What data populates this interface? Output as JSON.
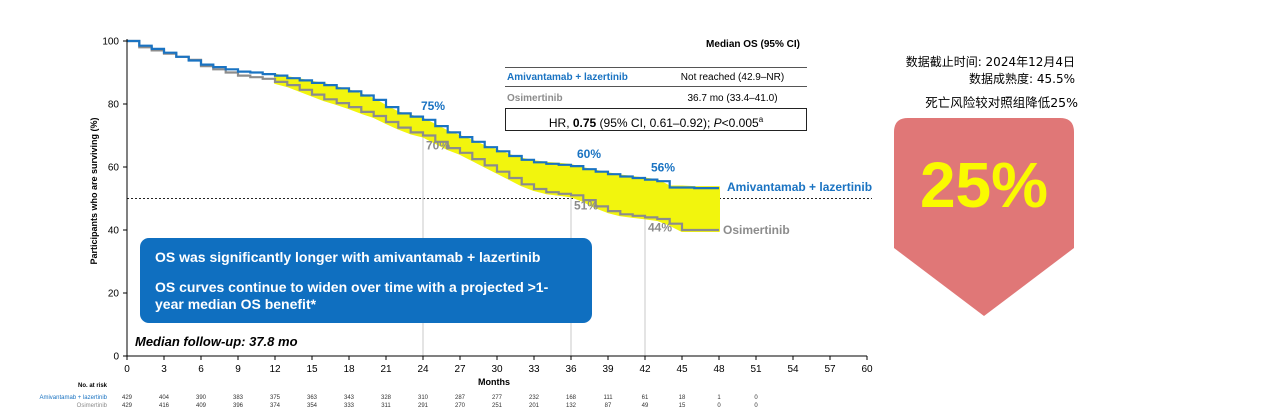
{
  "cutoff": {
    "date_label": "数据截止时间: 2024年12月4日",
    "maturity_label": "数据成熟度: 45.5%"
  },
  "reduction": {
    "text": "死亡风险较对照组降低25%",
    "value": "25%",
    "arrow_color": "#e07777"
  },
  "os_box": {
    "line1": "OS was significantly longer with amivantamab + lazertinib",
    "line2": "OS curves continue to widen over time with a projected >1-year median OS benefit*"
  },
  "follow_up": "Median follow-up: 37.8 mo",
  "chart_data": {
    "type": "line",
    "ylabel": "Participants who are surviving (%)",
    "xlabel": "Months",
    "xlim": [
      0,
      60
    ],
    "ylim": [
      0,
      100
    ],
    "x_ticks": [
      0,
      3,
      6,
      9,
      12,
      15,
      18,
      21,
      24,
      27,
      30,
      33,
      36,
      39,
      42,
      45,
      48,
      51,
      54,
      57,
      60
    ],
    "y_ticks": [
      0,
      20,
      40,
      60,
      80,
      100
    ],
    "reference_line_y": 50,
    "legend_header": "Median OS (95% CI)",
    "hr_text": "HR, 0.75 (95% CI, 0.61–0.92); P<0.005a",
    "series": [
      {
        "name": "Amivantamab + lazertinib",
        "color": "#1a73c2",
        "median": "Not reached (42.9–NR)",
        "end_label": "Amivantamab + lazertinib",
        "x": [
          0,
          1,
          2,
          3,
          4,
          5,
          6,
          7,
          8,
          9,
          10,
          11,
          12,
          13,
          14,
          15,
          16,
          17,
          18,
          19,
          20,
          21,
          22,
          23,
          24,
          25,
          26,
          27,
          28,
          29,
          30,
          31,
          32,
          33,
          34,
          35,
          36,
          37,
          38,
          39,
          40,
          41,
          42,
          43,
          44,
          45,
          46,
          47,
          48
        ],
        "y": [
          100,
          98.5,
          97.5,
          96.3,
          95,
          93.8,
          92.5,
          91.7,
          91,
          90.3,
          90,
          89.5,
          89,
          88.2,
          87.5,
          86.7,
          86,
          85,
          84,
          82.7,
          81.3,
          79,
          77,
          76,
          75,
          73,
          71,
          69.5,
          68,
          66.3,
          65,
          63.5,
          62.3,
          61.5,
          61,
          60.7,
          60.3,
          59.3,
          58.5,
          57.7,
          57,
          56.5,
          56,
          55.5,
          53.5,
          53.5,
          53.3,
          53.3,
          53.3
        ],
        "annotations": [
          {
            "x": 24,
            "label": "75%"
          },
          {
            "x": 36,
            "label": "60%"
          },
          {
            "x": 42,
            "label": "56%"
          }
        ],
        "at_risk": [
          429,
          404,
          390,
          383,
          375,
          363,
          343,
          328,
          310,
          287,
          277,
          232,
          168,
          111,
          61,
          18,
          1,
          0
        ]
      },
      {
        "name": "Osimertinib",
        "color": "#8c8c8c",
        "median": "36.7 mo (33.4–41.0)",
        "end_label": "Osimertinib",
        "x": [
          0,
          1,
          2,
          3,
          4,
          5,
          6,
          7,
          8,
          9,
          10,
          11,
          12,
          13,
          14,
          15,
          16,
          17,
          18,
          19,
          20,
          21,
          22,
          23,
          24,
          25,
          26,
          27,
          28,
          29,
          30,
          31,
          32,
          33,
          34,
          35,
          36,
          37,
          38,
          39,
          40,
          41,
          42,
          43,
          44,
          45,
          46,
          47,
          48
        ],
        "y": [
          100,
          98,
          97,
          96,
          95,
          94,
          92,
          91,
          90,
          89,
          88.5,
          88,
          87,
          86,
          84.5,
          83,
          81.5,
          80.3,
          79,
          77.5,
          76.2,
          74.3,
          72.5,
          71,
          70,
          68,
          66,
          64.5,
          62.5,
          60.5,
          58.5,
          56.5,
          54.5,
          53,
          52,
          51.5,
          51,
          49.5,
          47.5,
          46,
          45,
          44.5,
          44,
          43.5,
          42,
          40,
          40,
          40,
          40
        ],
        "annotations": [
          {
            "x": 24,
            "label": "70%"
          },
          {
            "x": 36,
            "label": "51%"
          },
          {
            "x": 42,
            "label": "44%"
          }
        ],
        "at_risk": [
          429,
          416,
          409,
          396,
          374,
          354,
          333,
          311,
          291,
          270,
          251,
          201,
          132,
          87,
          49,
          15,
          0,
          0
        ]
      }
    ],
    "at_risk_title": "No. at risk",
    "at_risk_x": [
      0,
      3,
      6,
      9,
      12,
      15,
      18,
      21,
      24,
      27,
      30,
      33,
      36,
      39,
      42,
      45,
      48,
      51
    ],
    "highlight_color": "#f2f50d"
  }
}
